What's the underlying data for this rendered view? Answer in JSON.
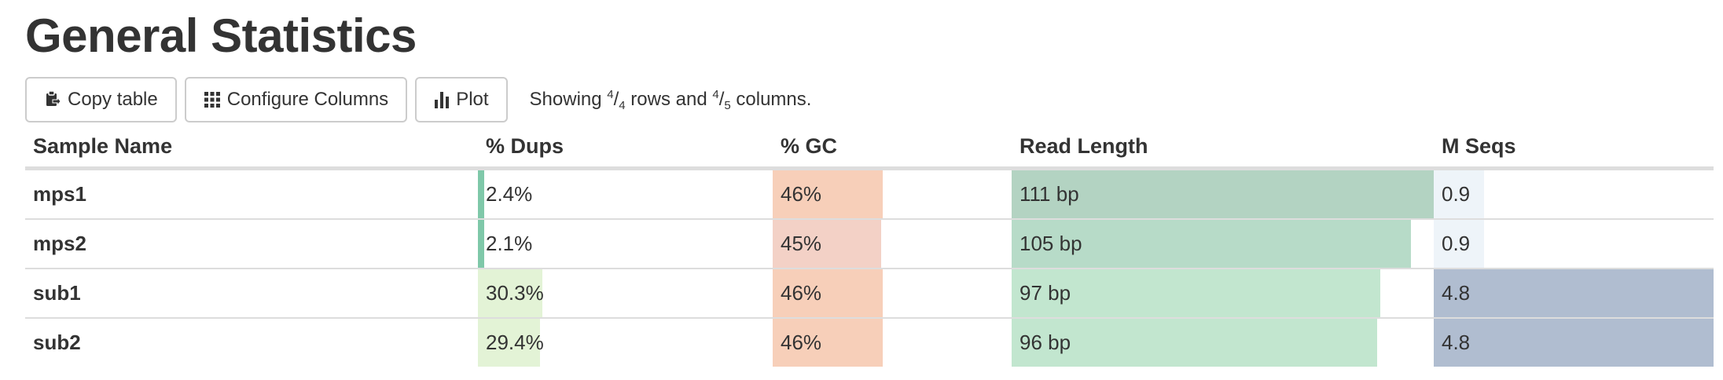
{
  "title": "General Statistics",
  "toolbar": {
    "copy_label": "Copy table",
    "configure_label": "Configure Columns",
    "plot_label": "Plot",
    "copy_icon": "clipboard-icon",
    "configure_icon": "grid-icon",
    "plot_icon": "bar-chart-icon"
  },
  "showing": {
    "prefix": "Showing ",
    "rows_num": "4",
    "rows_den": "4",
    "mid": " rows and ",
    "cols_num": "4",
    "cols_den": "5",
    "suffix": " columns."
  },
  "columns": {
    "sample": "Sample Name",
    "dups": "% Dups",
    "gc": "% GC",
    "readlen": "Read Length",
    "mseqs": "M Seqs"
  },
  "rows": [
    {
      "name": "mps1",
      "dups": "2.4%",
      "dups_frac": 0.024,
      "dups_color": "#7fc8a9",
      "gc": "46%",
      "gc_frac": 0.46,
      "gc_color": "#f7cfb9",
      "readlen": "111 bp",
      "readlen_frac": 1.0,
      "readlen_color": "#b3d3c2",
      "mseqs": "0.9",
      "mseqs_frac": 0.18,
      "mseqs_color": "#eef4f9"
    },
    {
      "name": "mps2",
      "dups": "2.1%",
      "dups_frac": 0.021,
      "dups_color": "#7fc8a9",
      "gc": "45%",
      "gc_frac": 0.45,
      "gc_color": "#f3d1c6",
      "readlen": "105 bp",
      "readlen_frac": 0.946,
      "readlen_color": "#b7dbc8",
      "mseqs": "0.9",
      "mseqs_frac": 0.18,
      "mseqs_color": "#eef4f9"
    },
    {
      "name": "sub1",
      "dups": "30.3%",
      "dups_frac": 0.303,
      "dups_color": "#e3f3d6",
      "gc": "46%",
      "gc_frac": 0.46,
      "gc_color": "#f7cfb9",
      "readlen": "97 bp",
      "readlen_frac": 0.874,
      "readlen_color": "#c2e6cf",
      "mseqs": "4.8",
      "mseqs_frac": 1.0,
      "mseqs_color": "#b0bdd0"
    },
    {
      "name": "sub2",
      "dups": "29.4%",
      "dups_frac": 0.294,
      "dups_color": "#e3f3d6",
      "gc": "46%",
      "gc_frac": 0.46,
      "gc_color": "#f7cfb9",
      "readlen": "96 bp",
      "readlen_frac": 0.865,
      "readlen_color": "#c2e6cf",
      "mseqs": "4.8",
      "mseqs_frac": 1.0,
      "mseqs_color": "#b0bdd0"
    }
  ]
}
